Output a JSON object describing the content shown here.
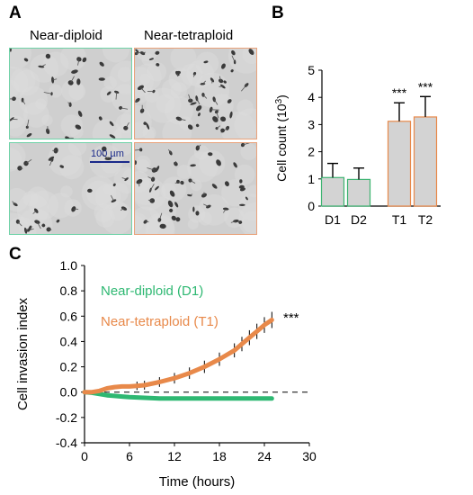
{
  "panel_a": {
    "letter": "A",
    "left_title": "Near-diploid",
    "right_title": "Near-tetraploid",
    "scale_bar_label": "100 µm",
    "diploid_border_color": "#6fd3a8",
    "tetraploid_border_color": "#e9a27a"
  },
  "chart_data": [
    {
      "panel": "B",
      "type": "bar",
      "categories": [
        "D1",
        "D2",
        "T1",
        "T2"
      ],
      "values": [
        1.05,
        0.98,
        3.12,
        3.28
      ],
      "errors": [
        0.52,
        0.42,
        0.68,
        0.75
      ],
      "significance": [
        "",
        "",
        "***",
        "***"
      ],
      "bar_fill": "#d3d3d3",
      "bar_edge_colors": [
        "#3cb371",
        "#3cb371",
        "#e8894a",
        "#e8894a"
      ],
      "xlabel": "",
      "ylabel": "Cell count (10",
      "ylabel_superscript": "3",
      "ylabel_suffix": ")",
      "ylim": [
        0,
        5
      ],
      "yticks": [
        0,
        1,
        2,
        3,
        4,
        5
      ],
      "grid": false
    },
    {
      "panel": "C",
      "type": "line",
      "xlabel": "Time (hours)",
      "ylabel": "Cell invasion index",
      "xlim": [
        0,
        30
      ],
      "ylim": [
        -0.4,
        1.0
      ],
      "xticks": [
        0,
        6,
        12,
        18,
        24,
        30
      ],
      "yticks": [
        -0.4,
        -0.2,
        0.0,
        0.2,
        0.4,
        0.6,
        0.8,
        1.0
      ],
      "reference_line_y": 0.0,
      "significance": "***",
      "series": [
        {
          "name": "Near-diploid (D1)",
          "color": "#2eb872",
          "x": [
            0,
            1,
            2,
            3,
            4,
            5,
            6,
            8,
            10,
            12,
            14,
            16,
            18,
            20,
            22,
            24,
            25
          ],
          "y": [
            0.0,
            -0.005,
            -0.015,
            -0.025,
            -0.03,
            -0.035,
            -0.04,
            -0.045,
            -0.05,
            -0.05,
            -0.05,
            -0.05,
            -0.05,
            -0.05,
            -0.05,
            -0.05,
            -0.05
          ]
        },
        {
          "name": "Near-tetraploid (T1)",
          "color": "#e8894a",
          "x": [
            0,
            1,
            2,
            3,
            4,
            5,
            6,
            7,
            8,
            10,
            12,
            14,
            16,
            18,
            20,
            21,
            22,
            23,
            24,
            25
          ],
          "y": [
            0.0,
            0.0,
            0.01,
            0.03,
            0.04,
            0.045,
            0.045,
            0.05,
            0.055,
            0.08,
            0.11,
            0.15,
            0.2,
            0.26,
            0.33,
            0.38,
            0.43,
            0.48,
            0.53,
            0.57
          ]
        }
      ],
      "legend": "upper-left"
    }
  ]
}
